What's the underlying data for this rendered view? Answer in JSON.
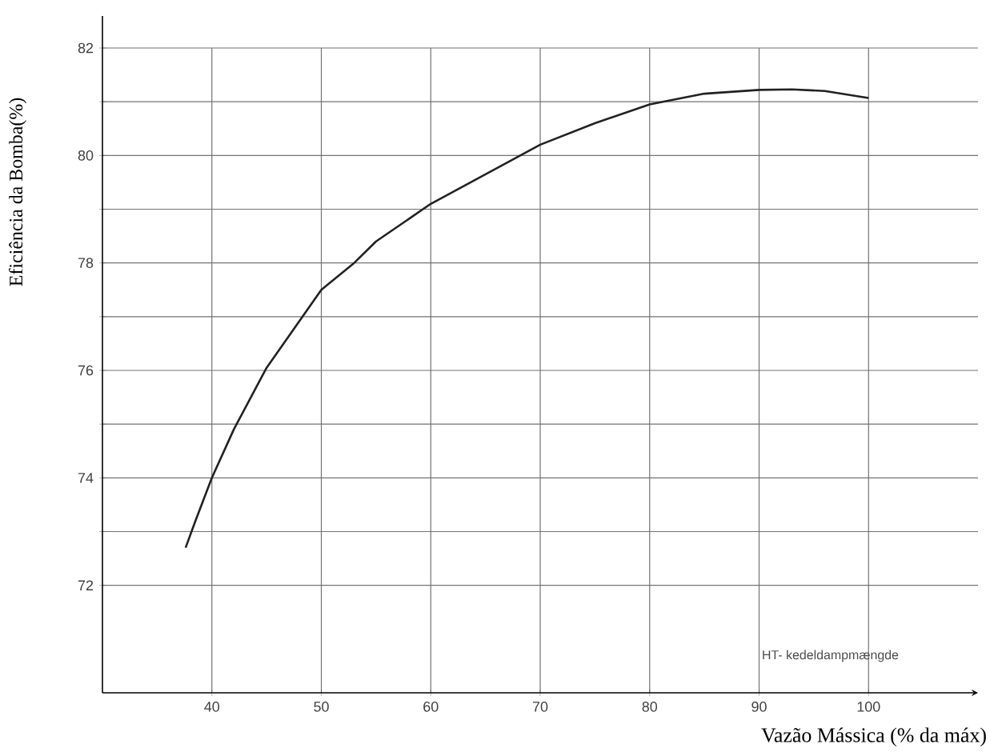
{
  "chart_data": {
    "type": "line",
    "xlabel": "Vazão Mássica (% da máx)",
    "ylabel": "Eficiência da Bomba(%)",
    "annotations": [
      "HT- kedeldampmængde"
    ],
    "x": [
      37.6,
      38.5,
      40,
      42,
      45,
      50,
      53,
      55,
      60,
      65,
      70,
      75,
      80,
      85,
      90,
      93,
      96,
      100
    ],
    "series": [
      {
        "color": "#222222",
        "values": [
          72.7,
          73.2,
          74.0,
          74.9,
          76.05,
          77.5,
          78.0,
          78.4,
          79.1,
          79.65,
          80.2,
          80.6,
          80.95,
          81.15,
          81.22,
          81.23,
          81.2,
          81.07
        ]
      }
    ],
    "xlim": [
      30,
      110
    ],
    "ylim": [
      70,
      82
    ],
    "xticks": [
      40,
      50,
      60,
      70,
      80,
      90,
      100
    ],
    "yticks": [
      72,
      {
        "value": 73,
        "label": null
      },
      74,
      {
        "value": 75,
        "label": null
      },
      76,
      {
        "value": 77,
        "label": null
      },
      78,
      {
        "value": 79,
        "label": null
      },
      80,
      {
        "value": 81,
        "label": null
      },
      82
    ],
    "grid": true,
    "marker": "none",
    "line_style": "solid"
  }
}
